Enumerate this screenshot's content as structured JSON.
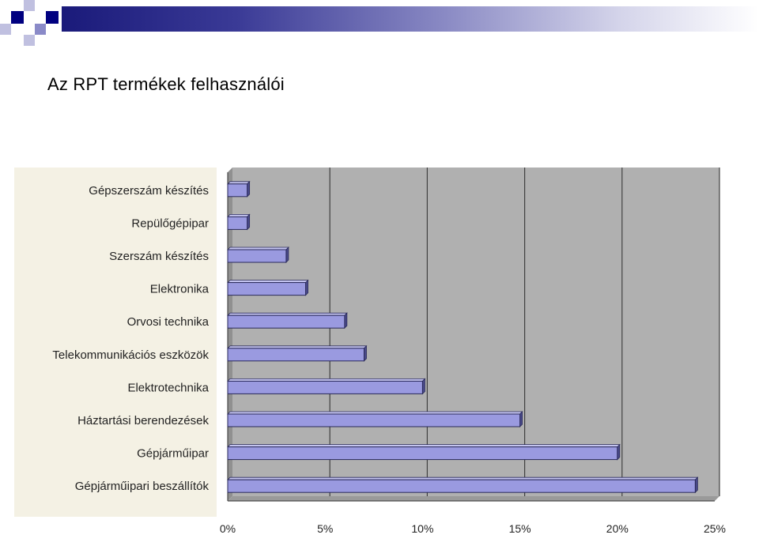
{
  "slide": {
    "title": "Az RPT termékek felhasználói"
  },
  "colors": {
    "accent_dark": "#000080",
    "accent_light": "#b8b8dc",
    "bar_fill": "#9a9ae0",
    "plot_background": "#b0b0b0",
    "label_background": "#f4f1e4"
  },
  "chart_data": {
    "type": "bar",
    "orientation": "horizontal",
    "categories": [
      "Gépszerszám készítés",
      "Repülőgépipar",
      "Szerszám készítés",
      "Elektronika",
      "Orvosi technika",
      "Telekommunikációs eszközök",
      "Elektrotechnika",
      "Háztartási berendezések",
      "Gépjárműipar",
      "Gépjárműipari beszállítók"
    ],
    "values": [
      1,
      1,
      3,
      4,
      6,
      7,
      10,
      15,
      20,
      24
    ],
    "xlim": [
      0,
      25
    ],
    "xticks": [
      "0%",
      "5%",
      "10%",
      "15%",
      "20%",
      "25%"
    ],
    "xtick_values": [
      0,
      5,
      10,
      15,
      20,
      25
    ],
    "grid": true,
    "legend": "none"
  }
}
